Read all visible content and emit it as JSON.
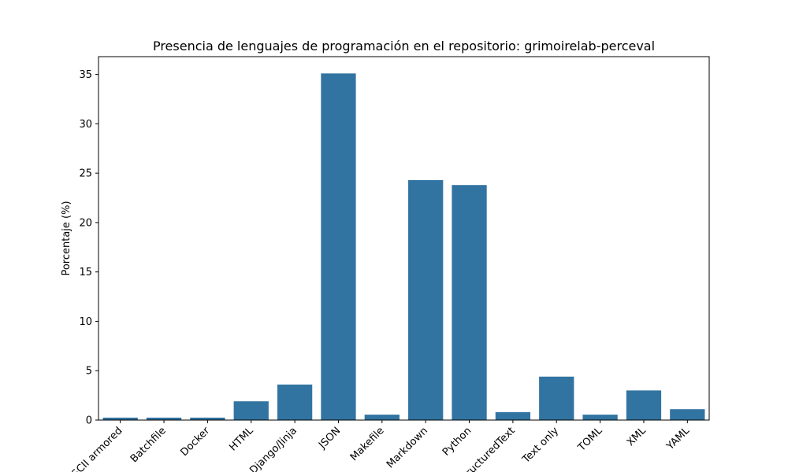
{
  "chart_data": {
    "type": "bar",
    "title": "Presencia de lenguajes de programación en el repositorio: grimoirelab-perceval",
    "xlabel": "",
    "ylabel": "Porcentaje (%)",
    "ylim": [
      0,
      36.8
    ],
    "yticks": [
      0,
      5,
      10,
      15,
      20,
      25,
      30,
      35
    ],
    "categories": [
      "ASCII armored",
      "Batchfile",
      "Docker",
      "HTML",
      "Django/Jinja",
      "JSON",
      "Makefile",
      "Markdown",
      "Python",
      "reStructuredText",
      "Text only",
      "TOML",
      "XML",
      "YAML"
    ],
    "values": [
      0.25,
      0.25,
      0.25,
      1.9,
      3.6,
      35.1,
      0.55,
      24.3,
      23.8,
      0.8,
      4.4,
      0.55,
      3.0,
      1.1
    ],
    "bar_color": "#3274a1",
    "grid": false,
    "legend": "none"
  }
}
